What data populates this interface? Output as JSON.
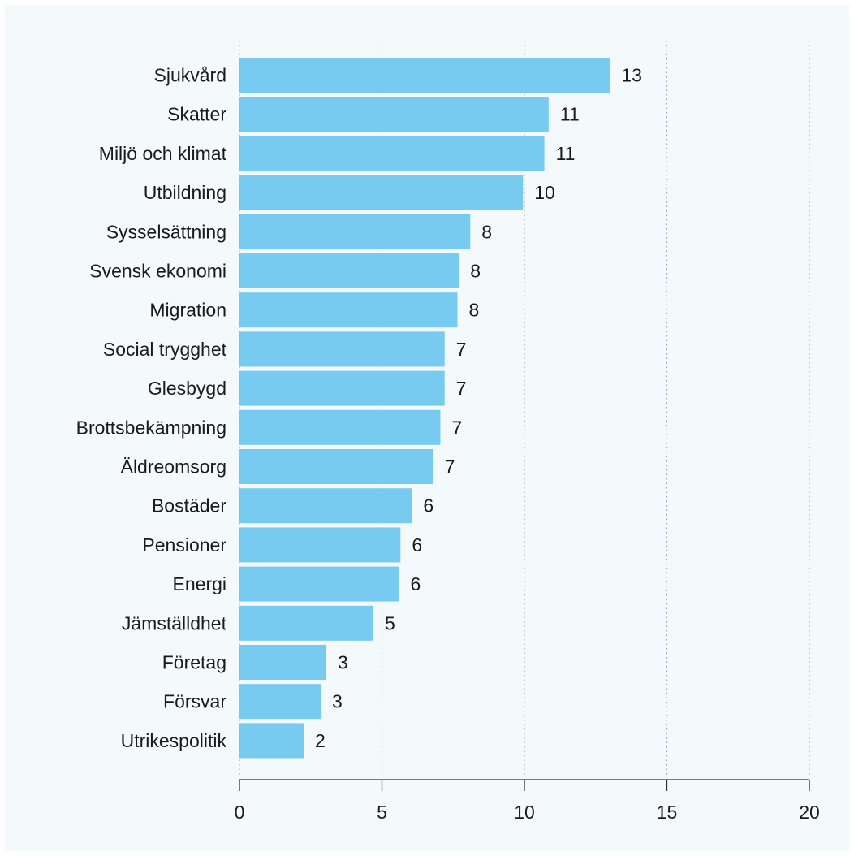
{
  "chart_data": {
    "type": "bar",
    "orientation": "horizontal",
    "title": "",
    "xlabel": "",
    "ylabel": "",
    "categories": [
      "Sjukvård",
      "Skatter",
      "Miljö och klimat",
      "Utbildning",
      "Sysselsättning",
      "Svensk ekonomi",
      "Migration",
      "Social trygghet",
      "Glesbygd",
      "Brottsbekämpning",
      "Äldreomsorg",
      "Bostäder",
      "Pensioner",
      "Energi",
      "Jämställdhet",
      "Företag",
      "Försvar",
      "Utrikespolitik"
    ],
    "values": [
      13.0,
      10.85,
      10.7,
      9.95,
      8.1,
      7.7,
      7.65,
      7.2,
      7.2,
      7.05,
      6.8,
      6.05,
      5.65,
      5.6,
      4.7,
      3.05,
      2.85,
      2.25
    ],
    "value_labels": [
      "13",
      "11",
      "11",
      "10",
      "8",
      "8",
      "8",
      "7",
      "7",
      "7",
      "7",
      "6",
      "6",
      "6",
      "5",
      "3",
      "3",
      "2"
    ],
    "xlim": [
      0,
      20
    ],
    "xticks": [
      0,
      5,
      10,
      15,
      20
    ],
    "grid": "vertical-dotted",
    "bar_color": "#77cbf0",
    "background_color": "#f4f9fc"
  }
}
